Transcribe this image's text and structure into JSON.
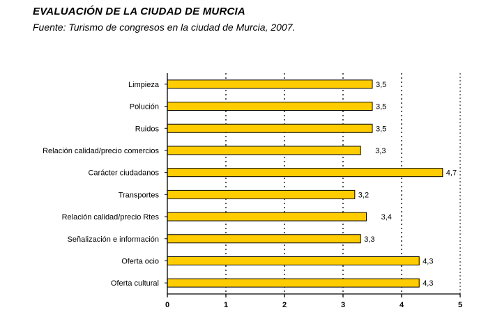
{
  "title": "EVALUACIÓN DE LA CIUDAD DE MURCIA",
  "subtitle": "Fuente: Turismo de congresos en la ciudad de Murcia, 2007.",
  "chart_data": {
    "type": "bar",
    "orientation": "horizontal",
    "categories": [
      "Limpieza",
      "Polución",
      "Ruidos",
      "Relación calidad/precio comercios",
      "Carácter ciudadanos",
      "Transportes",
      "Relación calidad/precio Rtes",
      "Señalización e información",
      "Oferta ocio",
      "Oferta cultural"
    ],
    "values": [
      3.5,
      3.5,
      3.5,
      3.3,
      4.7,
      3.2,
      3.4,
      3.3,
      4.3,
      4.3
    ],
    "value_labels": [
      "3,5",
      "3,5",
      "3,5",
      "3,3",
      "4,7",
      "3,2",
      "3,4",
      "3,3",
      "4,3",
      "4,3"
    ],
    "xlim": [
      0,
      5
    ],
    "xticks": [
      "0",
      "1",
      "2",
      "3",
      "4",
      "5"
    ],
    "grid": "vertical dotted",
    "bar_color": "#FFCC00"
  }
}
